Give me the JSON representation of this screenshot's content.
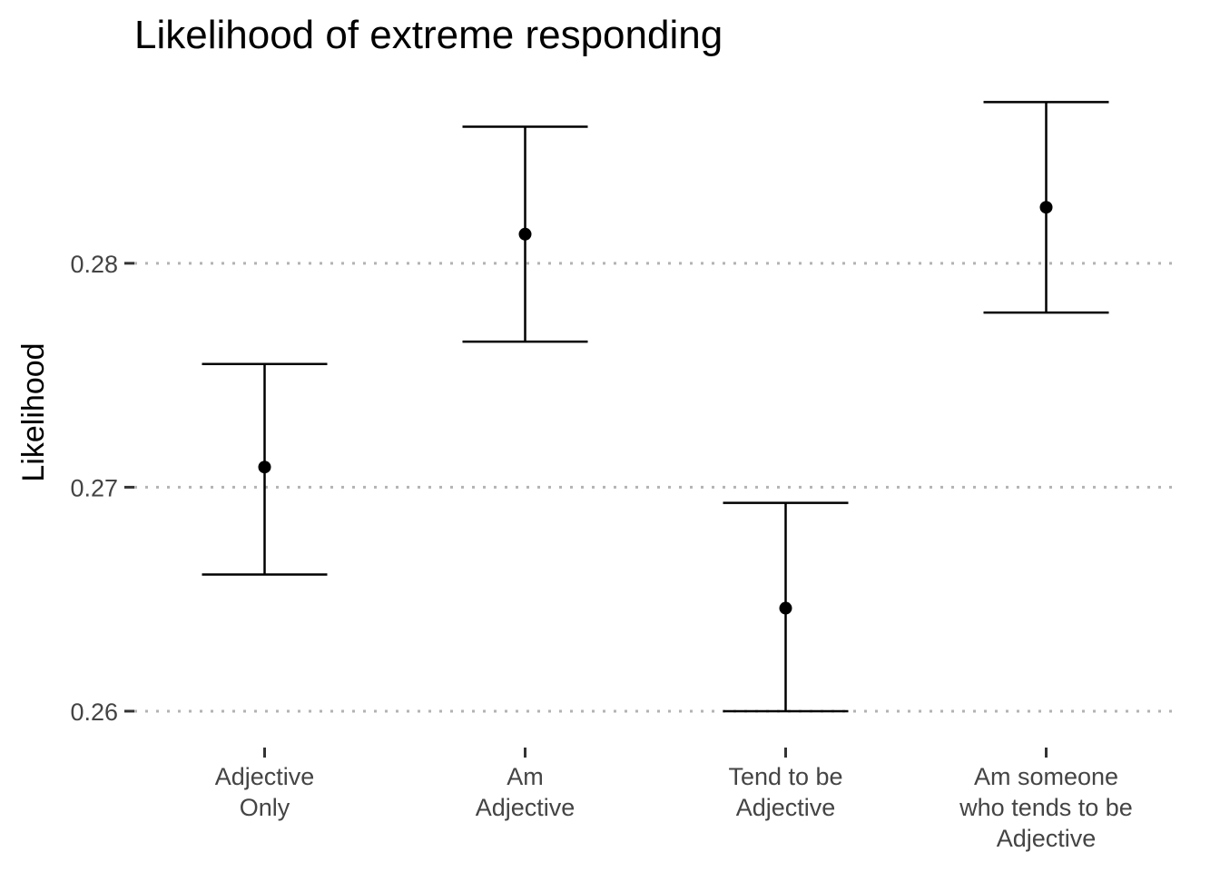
{
  "chart_data": {
    "type": "errorbar",
    "title": "Likelihood of extreme responding",
    "xlabel": "",
    "ylabel": "Likelihood",
    "ylim": [
      0.2587,
      0.2877
    ],
    "yticks": [
      0.26,
      0.27,
      0.28
    ],
    "ytick_labels": [
      "0.26",
      "0.27",
      "0.28"
    ],
    "grid": "horizontal dotted (major y only)",
    "legend": "none",
    "categories": [
      [
        "Adjective",
        "Only"
      ],
      [
        "Am",
        "Adjective"
      ],
      [
        "Tend to be",
        "Adjective"
      ],
      [
        "Am someone",
        "who tends to be",
        "Adjective"
      ]
    ],
    "estimates": [
      0.2709,
      0.2813,
      0.2646,
      0.2825
    ],
    "lower": [
      0.2661,
      0.2765,
      0.26,
      0.2778
    ],
    "upper": [
      0.2755,
      0.2861,
      0.2693,
      0.2872
    ],
    "colors": {
      "marks": "#000000",
      "grid": "#b3b3b3",
      "ticks": "#333333"
    }
  }
}
